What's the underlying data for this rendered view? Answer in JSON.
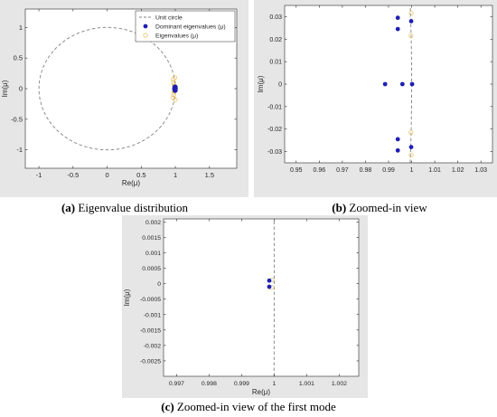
{
  "colors": {
    "dominant": "#1f1fb4",
    "eigen": "#e8c46a",
    "circle": "#808080",
    "frame": "#e6e6e6",
    "axes": "#262626"
  },
  "captions": {
    "a": {
      "letter": "(a)",
      "text": "Eigenvalue distribution"
    },
    "b": {
      "letter": "(b)",
      "text": "Zoomed-in view"
    },
    "c": {
      "letter": "(c)",
      "text": "Zoomed-in view of the first mode"
    }
  },
  "chart_data": [
    {
      "id": "a",
      "type": "scatter",
      "xlabel": "Re(μ)",
      "ylabel": "Im(μ)",
      "xlim": [
        -1.2,
        1.9
      ],
      "ylim": [
        -1.3,
        1.3
      ],
      "xticks": [
        -1,
        -0.5,
        0,
        0.5,
        1,
        1.5
      ],
      "xticklabels": [
        "-1",
        "-0.5",
        "0",
        "0.5",
        "1",
        "1.5"
      ],
      "yticks": [
        1,
        0.5,
        0,
        -0.5,
        -1
      ],
      "yticklabels": [
        "1",
        "0.5",
        "0",
        "-0.5",
        "-1"
      ],
      "unit_circle": true,
      "legend": {
        "placement": "top-right",
        "entries": [
          "Unit circle",
          "Dominant eigenvalues (μ)",
          "Eigenvalues (μ)"
        ]
      },
      "series": [
        {
          "name": "Dominant eigenvalues (μ)",
          "x": [
            0.988,
            0.996,
            1.0,
            0.994,
            0.994,
            0.9998,
            0.9998,
            0.994,
            0.994,
            0.9999,
            0.9999
          ],
          "y": [
            0,
            0,
            0,
            0.0295,
            0.0245,
            0.028,
            -0.028,
            -0.0245,
            -0.0295,
            0.0001,
            -0.0001
          ]
        },
        {
          "name": "Eigenvalues (μ)",
          "x": [
            0.97,
            0.975,
            0.98,
            0.985,
            0.99,
            0.995,
            0.985,
            0.98,
            0.975,
            0.97,
            0.992,
            0.998
          ],
          "y": [
            0.15,
            0.1,
            0.06,
            0.03,
            0.01,
            -0.005,
            -0.03,
            -0.06,
            -0.1,
            -0.15,
            0.18,
            -0.18
          ]
        }
      ]
    },
    {
      "id": "b",
      "type": "scatter",
      "xlabel": "",
      "ylabel": "Im(μ)",
      "xlim": [
        0.945,
        1.035
      ],
      "ylim": [
        -0.035,
        0.035
      ],
      "xticks": [
        0.95,
        0.96,
        0.97,
        0.98,
        0.99,
        1,
        1.01,
        1.02,
        1.03
      ],
      "xticklabels": [
        "0.95",
        "0.96",
        "0.97",
        "0.98",
        "0.99",
        "1",
        "1.01",
        "1.02",
        "1.03"
      ],
      "yticks": [
        0.03,
        0.02,
        0.01,
        0,
        -0.01,
        -0.02,
        -0.03
      ],
      "yticklabels": [
        "0.03",
        "0.02",
        "0.01",
        "0",
        "-0.01",
        "-0.02",
        "-0.03"
      ],
      "unit_circle": true,
      "series": [
        {
          "name": "Dominant eigenvalues (μ)",
          "x": [
            0.9885,
            0.996,
            1.0002,
            0.994,
            0.994,
            0.9998,
            0.9998,
            0.994,
            0.994
          ],
          "y": [
            0,
            0,
            0,
            0.0295,
            0.0245,
            0.028,
            -0.028,
            -0.0245,
            -0.0295
          ]
        },
        {
          "name": "Eigenvalues (μ)",
          "x": [
            0.9998,
            0.9997,
            0.9997,
            0.9998
          ],
          "y": [
            0.0315,
            0.0215,
            -0.0215,
            -0.0315
          ]
        }
      ]
    },
    {
      "id": "c",
      "type": "scatter",
      "xlabel": "Re(μ)",
      "ylabel": "Im(μ)",
      "xlim": [
        0.9966,
        1.0026
      ],
      "ylim": [
        -0.003,
        0.0021
      ],
      "xticks": [
        0.997,
        0.998,
        0.999,
        1,
        1.001,
        1.002
      ],
      "xticklabels": [
        "0.997",
        "0.998",
        "0.999",
        "1",
        "1.001",
        "1.002"
      ],
      "yticks": [
        0.002,
        0.0015,
        0.001,
        0.0005,
        0,
        -0.0005,
        -0.001,
        -0.0015,
        -0.002,
        -0.0025
      ],
      "yticklabels": [
        "0.002",
        "0.0015",
        "0.001",
        "0.0005",
        "0",
        "-0.0005",
        "-0.001",
        "-0.0015",
        "-0.002",
        "-0.0025"
      ],
      "unit_circle": true,
      "series": [
        {
          "name": "Dominant eigenvalues (μ)",
          "x": [
            0.99985,
            0.99985
          ],
          "y": [
            0.0001,
            -0.0001
          ]
        },
        {
          "name": "Eigenvalues (μ)",
          "x": [
            0.99993,
            0.99993
          ],
          "y": [
            0.00012,
            -0.00012
          ]
        }
      ]
    }
  ]
}
